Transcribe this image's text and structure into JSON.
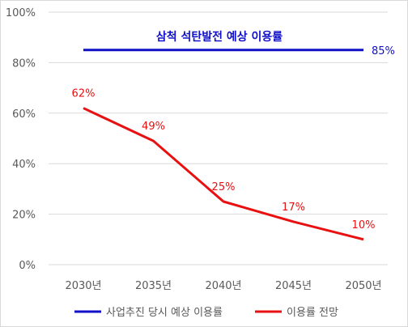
{
  "chart_data": {
    "type": "line",
    "categories": [
      "2030년",
      "2035년",
      "2040년",
      "2045년",
      "2050년"
    ],
    "ylim": [
      0,
      100
    ],
    "y_ticks": [
      0,
      20,
      40,
      60,
      80,
      100
    ],
    "y_tick_labels": [
      "0%",
      "20%",
      "40%",
      "60%",
      "80%",
      "100%"
    ],
    "grid": true,
    "legend_position": "bottom",
    "series": [
      {
        "name": "사업추진 당시 예상 이용률",
        "color": "#1010c8",
        "values": [
          85,
          85,
          85,
          85,
          85
        ],
        "end_label": "85%",
        "annotation": "삼척 석탄발전 예상 이용률"
      },
      {
        "name": "이용률 전망",
        "color": "#e81010",
        "values": [
          62,
          49,
          25,
          17,
          10
        ],
        "data_labels": [
          "62%",
          "49%",
          "25%",
          "17%",
          "10%"
        ]
      }
    ]
  }
}
